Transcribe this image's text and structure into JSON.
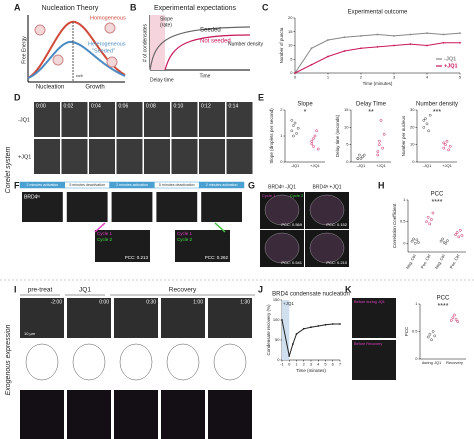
{
  "side_labels": [
    "Corelet system",
    "Exogenous expression"
  ],
  "panel_letters": [
    "A",
    "B",
    "C",
    "D",
    "E",
    "F",
    "G",
    "H",
    "I",
    "J",
    "K"
  ],
  "A": {
    "title": "Nucleation Theory",
    "homogeneous": "Homogeneous",
    "heterogeneous": "Heterogeneous",
    "seeded": "\"Seeded\"",
    "y_label": "Free Energy",
    "nucleation": "Nucleation",
    "growth": "Growth",
    "r_crit": "rcrit"
  },
  "B": {
    "title": "Experimental expectations",
    "slope": "Slope",
    "rate": "(rate)",
    "seeded": "Seeded",
    "not_seeded": "Not seeded",
    "number_density": "Number density",
    "delay_time": "Delay time",
    "x_label": "Time",
    "y_label": "# of condensates"
  },
  "C": {
    "type": "line",
    "title": "Experimental outcome",
    "x_label": "Time (minutes)",
    "y_label": "Number of puncta",
    "x": [
      0,
      0.5,
      1,
      1.5,
      2,
      2.5,
      3,
      3.5,
      4,
      4.5,
      5
    ],
    "xlim": [
      0,
      5
    ],
    "ylim": [
      0,
      20
    ],
    "xticks": [
      0,
      1,
      2,
      3,
      4,
      5
    ],
    "yticks": [
      0,
      5,
      10,
      15,
      20
    ],
    "series": [
      {
        "name": "-JQ1",
        "color": "#888888",
        "values": [
          0,
          9,
          12,
          13,
          13.5,
          14,
          13.5,
          14,
          14.5,
          14,
          14.5
        ]
      },
      {
        "name": "+JQ1",
        "color": "#c8185c",
        "values": [
          0,
          3,
          6,
          8,
          9,
          9.5,
          10,
          10.5,
          10,
          11,
          11
        ]
      }
    ]
  },
  "D": {
    "times": [
      "0:00",
      "0:02",
      "0:04",
      "0:06",
      "0:08",
      "0:10",
      "0:12",
      "0:14"
    ],
    "rows": [
      "-JQ1",
      "+JQ1"
    ]
  },
  "E": {
    "charts": [
      {
        "type": "scatter",
        "title": "Slope",
        "y_label": "Slope (droplets per second)",
        "significance": "*",
        "categories": [
          "-JQ1",
          "+JQ1"
        ],
        "ylim": [
          0,
          2
        ],
        "yticks": [
          0,
          1,
          2
        ],
        "color": "#c8185c",
        "values": [
          [
            1.2,
            1.4,
            1.5,
            1.1,
            1.3,
            1.6,
            1.0
          ],
          [
            0.8,
            0.6,
            1.0,
            1.2,
            0.5,
            0.7,
            0.9
          ]
        ]
      },
      {
        "type": "scatter",
        "title": "Delay Time",
        "y_label": "Delay time (seconds)",
        "significance": "**",
        "categories": [
          "-JQ1",
          "+JQ1"
        ],
        "ylim": [
          0,
          15
        ],
        "yticks": [
          0,
          5,
          10,
          15
        ],
        "color": "#c8185c",
        "values": [
          [
            1,
            2,
            1,
            1.5,
            2,
            1
          ],
          [
            3,
            6,
            12,
            4,
            8,
            2,
            5
          ]
        ]
      },
      {
        "type": "scatter",
        "title": "Number density",
        "y_label": "Number per nucleus",
        "significance": "***",
        "categories": [
          "-JQ1",
          "+JQ1"
        ],
        "ylim": [
          0,
          30
        ],
        "yticks": [
          0,
          10,
          20,
          30
        ],
        "color": "#c8185c",
        "values": [
          [
            20,
            25,
            22,
            18,
            27,
            24
          ],
          [
            8,
            10,
            12,
            7,
            9,
            11
          ]
        ]
      }
    ]
  },
  "F": {
    "label": "BRD4ᴺ",
    "steps": [
      "2 minutes activation",
      "5 minutes deactivation",
      "2 minutes activation",
      "5 minutes deactivation",
      "2 minutes activation"
    ],
    "cycle1": "Cycle 1",
    "cycle2": "Cycle 2",
    "pcc": [
      "PCC: 0.213",
      "PCC: 0.262"
    ]
  },
  "G": {
    "columns": [
      "BRD4ᴺ -JQ1",
      "BRD4ᴺ +JQ1"
    ],
    "cycle1": "Cycle 1",
    "cycle2": "Cycle 2",
    "pcc": [
      "PCC: 0.569",
      "PCC: 0.152",
      "PCC: 0.541",
      "PCC: 0.210"
    ]
  },
  "H": {
    "type": "scatter",
    "title": "PCC",
    "y_label": "Correlation Coefficient",
    "significance": "****",
    "categories": [
      "Neg. Ctrl",
      "Pos. Ctrl",
      "Neg. Ctrl",
      "Pos. Ctrl"
    ],
    "ylim": [
      -0.2,
      1
    ],
    "yticks": [
      0,
      0.5,
      1
    ],
    "color": "#c8185c",
    "values": [
      [
        0.05,
        0.1,
        0,
        0.08,
        0.02
      ],
      [
        0.5,
        0.6,
        0.45,
        0.55,
        0.7
      ],
      [
        0.05,
        0.1,
        0.02,
        0.0,
        0.06
      ],
      [
        0.2,
        0.25,
        0.15,
        0.3,
        0.18
      ]
    ]
  },
  "I": {
    "headers": [
      "pre-treat",
      "JQ1",
      "Recovery"
    ],
    "times": [
      "-2:00",
      "0:00",
      "0:30",
      "1:00",
      "1:30"
    ],
    "scale": "10 µm"
  },
  "J": {
    "type": "line",
    "title": "BRD4 condensate nucleation",
    "x_label": "Time (minutes)",
    "y_label": "Condensate recovery (%)",
    "annotation": "+JQ1",
    "shaded_x": [
      -1,
      0
    ],
    "x": [
      -1,
      0,
      0.5,
      1,
      2,
      3,
      4,
      5,
      6,
      7
    ],
    "xlim": [
      -1,
      7
    ],
    "ylim": [
      0,
      150
    ],
    "xticks": [
      -1,
      0,
      1,
      2,
      3,
      4,
      5,
      6,
      7
    ],
    "yticks": [
      0,
      50,
      100,
      150
    ],
    "series": [
      {
        "color": "#222222",
        "values": [
          100,
          10,
          40,
          65,
          78,
          82,
          85,
          88,
          90,
          90
        ]
      }
    ]
  },
  "K": {
    "labels": [
      "Before during JQ1",
      "Before Recovery"
    ],
    "chart": {
      "type": "scatter",
      "title": "PCC",
      "y_label": "PCC",
      "significance": "****",
      "categories": [
        "during JQ1",
        "Recovery"
      ],
      "ylim": [
        0,
        1
      ],
      "yticks": [
        0,
        0.5,
        1
      ],
      "color": "#c8185c",
      "values": [
        [
          0.4,
          0.45,
          0.35,
          0.5,
          0.42
        ],
        [
          0.7,
          0.75,
          0.8,
          0.72,
          0.68
        ]
      ]
    }
  }
}
